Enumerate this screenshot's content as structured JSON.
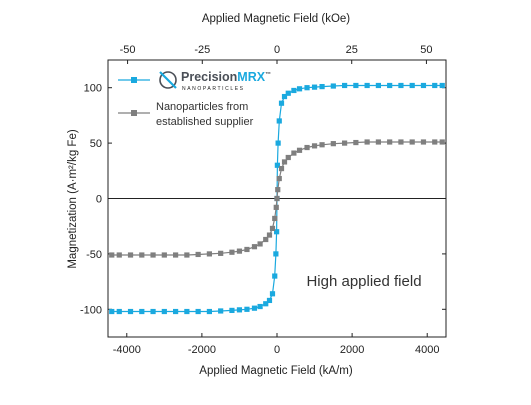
{
  "colors": {
    "precision": "#1aa9df",
    "supplier": "#7f7f7f",
    "axis": "#222222",
    "annotation": "#333333",
    "logo_dark": "#4a4f57"
  },
  "chart_data": {
    "type": "scatter",
    "xlabel": "Applied Magnetic Field (kA/m)",
    "x2label": "Applied Magnetic Field (kOe)",
    "ylabel": "Magnetization (A·m²/kg Fe)",
    "xlim": [
      -4500,
      4500
    ],
    "x2lim": [
      -56.55,
      56.55
    ],
    "ylim": [
      -125,
      125
    ],
    "xticks": [
      -4000,
      -2000,
      0,
      2000,
      4000
    ],
    "x2ticks": [
      -50,
      -25,
      0,
      25,
      50
    ],
    "yticks": [
      -100,
      -50,
      0,
      50,
      100
    ],
    "grid": false,
    "legend_position": "top-left",
    "annotation": "High applied field",
    "series": [
      {
        "name": "PrecisionMRX",
        "color": "#1aa9df",
        "marker": "square",
        "x": [
          -4400,
          -4200,
          -3900,
          -3600,
          -3300,
          -3000,
          -2700,
          -2400,
          -2100,
          -1800,
          -1500,
          -1200,
          -1000,
          -800,
          -600,
          -450,
          -300,
          -200,
          -120,
          -60,
          -30,
          -10,
          0,
          10,
          30,
          60,
          120,
          200,
          300,
          450,
          600,
          800,
          1000,
          1200,
          1500,
          1800,
          2100,
          2400,
          2700,
          3000,
          3300,
          3600,
          3900,
          4200,
          4400
        ],
        "y": [
          -102,
          -102,
          -102,
          -102,
          -102,
          -102,
          -102,
          -102,
          -102,
          -102,
          -101.5,
          -101,
          -100.5,
          -100,
          -99,
          -97.5,
          -95,
          -92,
          -86,
          -70,
          -50,
          -30,
          0,
          30,
          50,
          70,
          86,
          92,
          95,
          97.5,
          99,
          100,
          100.5,
          101,
          101.5,
          102,
          102,
          102,
          102,
          102,
          102,
          102,
          102,
          102,
          102
        ]
      },
      {
        "name": "Nanoparticles from established supplier",
        "label_lines": [
          "Nanoparticles from",
          "established supplier"
        ],
        "color": "#7f7f7f",
        "marker": "square",
        "x": [
          -4400,
          -4200,
          -3900,
          -3600,
          -3300,
          -3000,
          -2700,
          -2400,
          -2100,
          -1800,
          -1500,
          -1200,
          -1000,
          -800,
          -600,
          -450,
          -300,
          -200,
          -120,
          -60,
          -20,
          0,
          20,
          60,
          120,
          200,
          300,
          450,
          600,
          800,
          1000,
          1200,
          1500,
          1800,
          2100,
          2400,
          2700,
          3000,
          3300,
          3600,
          3900,
          4200,
          4400
        ],
        "y": [
          -51,
          -51,
          -51,
          -51,
          -51,
          -51,
          -51,
          -51,
          -50.5,
          -50,
          -49.5,
          -48.5,
          -47.5,
          -46,
          -43.5,
          -41,
          -37,
          -33,
          -27,
          -18,
          -8,
          0,
          8,
          18,
          27,
          33,
          37,
          41,
          43.5,
          46,
          47.5,
          48.5,
          49.5,
          50,
          50.5,
          51,
          51,
          51,
          51,
          51,
          51,
          51,
          51
        ]
      }
    ]
  },
  "logo": {
    "brand": "Precision",
    "brand_accent": "MRX",
    "trademark": "™",
    "tagline": "NANOPARTICLES"
  }
}
